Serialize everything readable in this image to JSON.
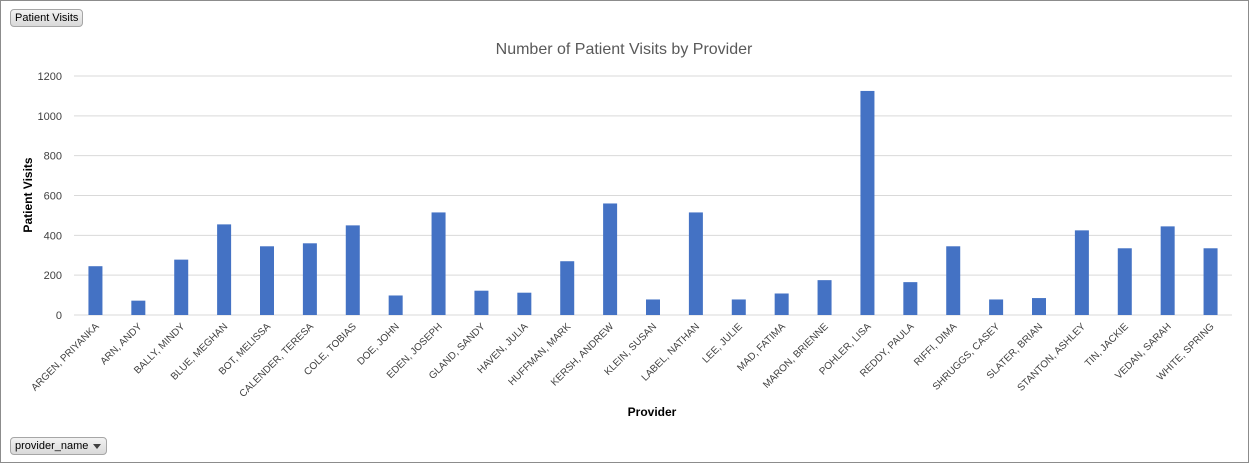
{
  "filters": {
    "top_field": "Patient Visits",
    "bottom_field": "provider_name"
  },
  "colors": {
    "bar": "#4472c4",
    "grid": "#d9d9d9"
  },
  "chart_data": {
    "type": "bar",
    "title": "Number of Patient Visits by Provider",
    "xlabel": "Provider",
    "ylabel": "Patient Visits",
    "ylim": [
      0,
      1200
    ],
    "yticks": [
      0,
      200,
      400,
      600,
      800,
      1000,
      1200
    ],
    "grid": true,
    "legend": "none",
    "categories": [
      "ARGEN, PRIYANKA",
      "ARN, ANDY",
      "BALLY, MINDY",
      "BLUE, MEGHAN",
      "BOT, MELISSA",
      "CALENDER, TERESA",
      "COLE, TOBIAS",
      "DOE, JOHN",
      "EDEN, JOSEPH",
      "GLAND, SANDY",
      "HAVEN, JULIA",
      "HUFFMAN, MARK",
      "KERSH, ANDREW",
      "KLEIN, SUSAN",
      "LABEL, NATHAN",
      "LEE, JULIE",
      "MAD, FATIMA",
      "MARON, BRIENNE",
      "POHLER, LISA",
      "REDDY, PAULA",
      "RIFFI, DIMA",
      "SHRUGGS, CASEY",
      "SLATER, BRIAN",
      "STANTON, ASHLEY",
      "TIN, JACKIE",
      "VEDAN, SARAH",
      "WHITE, SPRING"
    ],
    "values": [
      245,
      72,
      278,
      455,
      345,
      360,
      450,
      98,
      515,
      122,
      112,
      270,
      560,
      78,
      515,
      78,
      108,
      175,
      1125,
      165,
      345,
      78,
      85,
      425,
      335,
      445,
      335
    ]
  }
}
